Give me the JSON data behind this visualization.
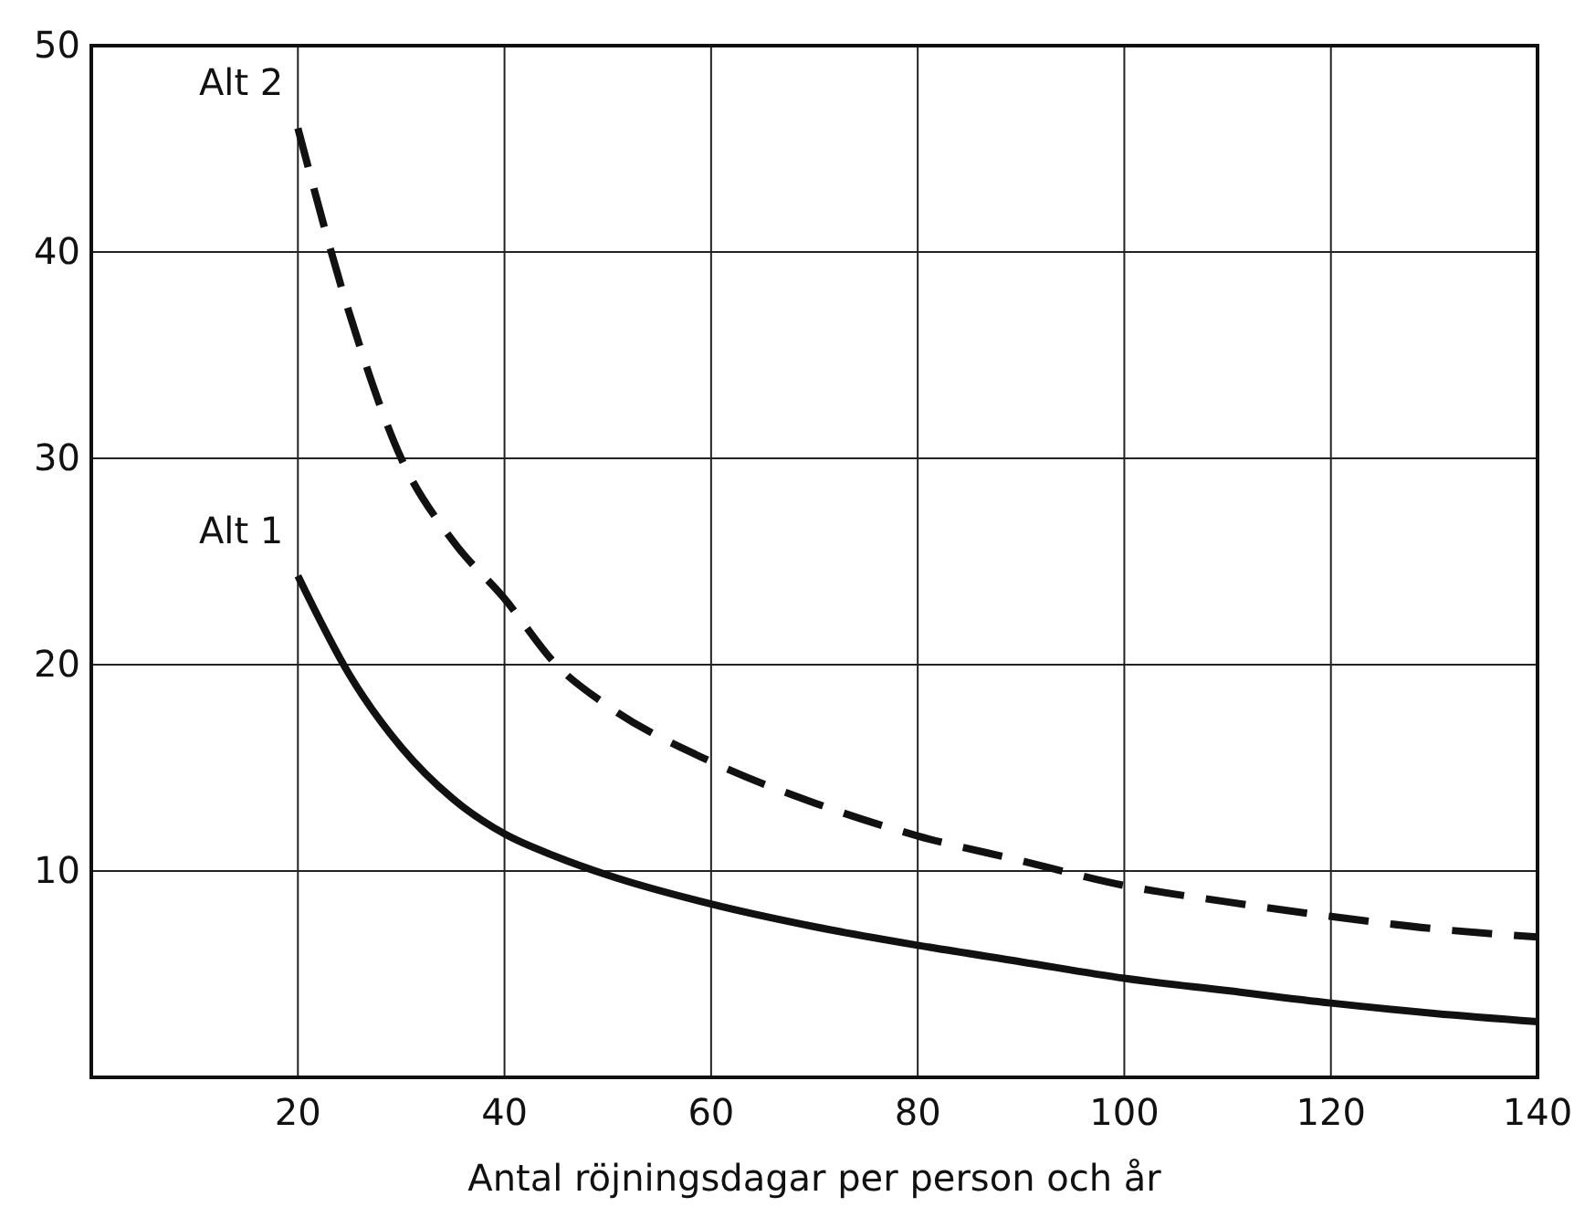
{
  "chart_data": {
    "type": "line",
    "xlabel": "Antal röjningsdagar per person och år",
    "x": [
      20,
      25,
      30,
      35,
      40,
      45,
      50,
      60,
      70,
      80,
      90,
      100,
      110,
      120,
      130,
      140
    ],
    "series": [
      {
        "name": "Alt 1",
        "color": "#111111",
        "line_style": "solid",
        "values": [
          24.3,
          19.5,
          16,
          13.5,
          11.8,
          10.7,
          9.8,
          8.4,
          7.3,
          6.4,
          5.6,
          4.8,
          4.2,
          3.6,
          3.1,
          2.7
        ]
      },
      {
        "name": "Alt 2",
        "color": "#111111",
        "line_style": "dashed",
        "values": [
          46,
          37,
          30,
          26,
          23.2,
          20,
          18,
          15.3,
          13.3,
          11.7,
          10.5,
          9.3,
          8.5,
          7.8,
          7.2,
          6.8
        ]
      }
    ],
    "xlim": [
      0,
      140
    ],
    "ylim": [
      0,
      50
    ],
    "xticks": [
      20,
      40,
      60,
      80,
      100,
      120,
      140
    ],
    "yticks": [
      10,
      20,
      30,
      40,
      50
    ],
    "grid": true,
    "legend": false,
    "marker": "none"
  }
}
